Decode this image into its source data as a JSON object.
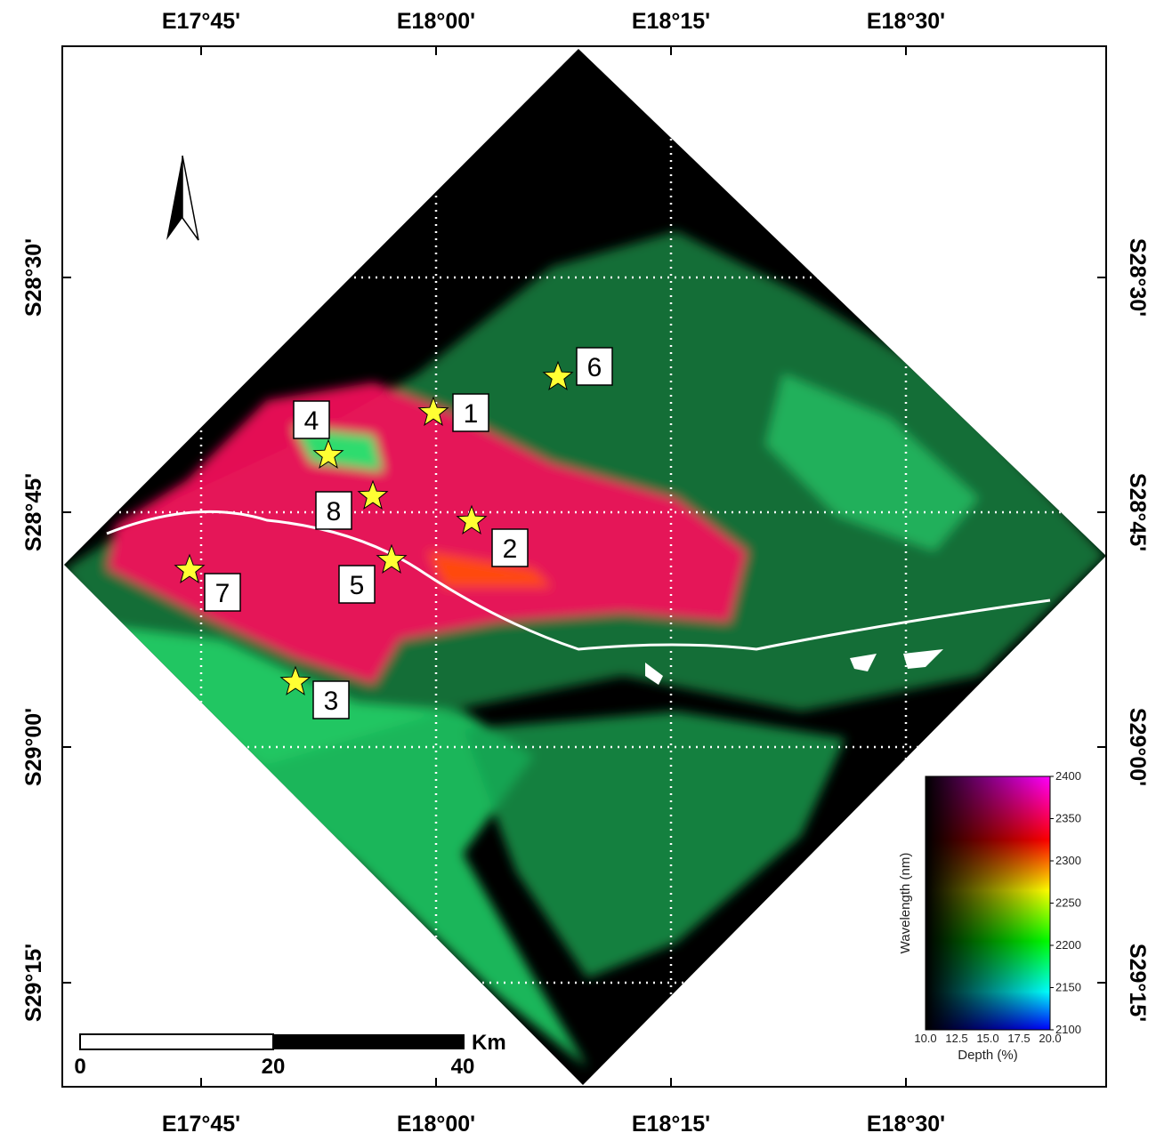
{
  "map": {
    "lon_labels": [
      "E17°45'",
      "E18°00'",
      "E18°15'",
      "E18°30'"
    ],
    "lat_labels": [
      "S28°30'",
      "S28°45'",
      "S29°00'",
      "S29°15'"
    ],
    "sites": [
      "1",
      "2",
      "3",
      "4",
      "5",
      "6",
      "7",
      "8"
    ],
    "scale_bar": {
      "labels": [
        "0",
        "20",
        "40"
      ],
      "unit": "Km"
    },
    "colorbar": {
      "ylabel": "Wavelength (nm)",
      "ylim": [
        2100,
        2400
      ],
      "yticks": [
        2100,
        2150,
        2200,
        2250,
        2300,
        2350,
        2400
      ],
      "xlabel": "Depth (%)",
      "xticks": [
        "10.0",
        "12.5",
        "15.0",
        "17.5",
        "20.0"
      ]
    }
  }
}
